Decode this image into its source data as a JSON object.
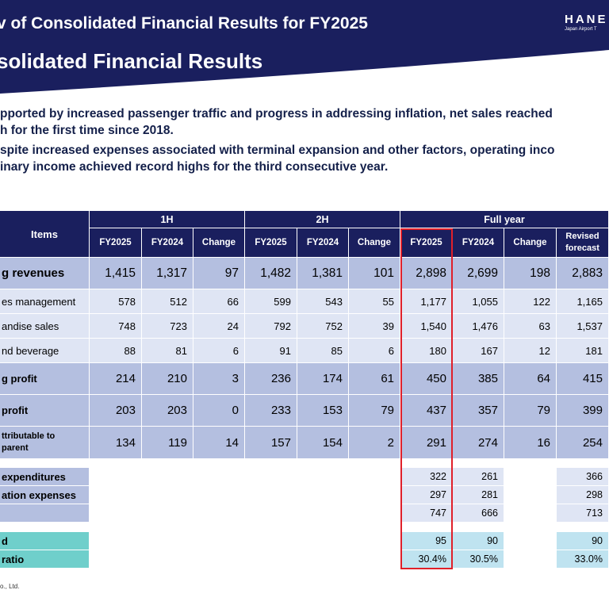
{
  "header": {
    "title_line1": "v of Consolidated Financial Results for FY2025",
    "title_line2": "solidated Financial Results",
    "logo_text": "HANE",
    "logo_sub": "Japan Airport T"
  },
  "bullets": [
    {
      "lines": [
        "pported by increased passenger traffic and progress in addressing inflation, net sales reached",
        "h for the first time since 2018."
      ]
    },
    {
      "lines": [
        "spite increased expenses associated with terminal expansion and other factors, operating inco",
        "inary income achieved record highs for the third consecutive year."
      ]
    }
  ],
  "table": {
    "items_header": "Items",
    "groups": [
      "1H",
      "2H",
      "Full year"
    ],
    "subheaders": [
      "FY2025",
      "FY2024",
      "Change",
      "FY2025",
      "FY2024",
      "Change",
      "FY2025",
      "FY2024",
      "Change",
      "Revised forecast"
    ],
    "rows": [
      {
        "label": "g revenues",
        "values": [
          "1,415",
          "1,317",
          "97",
          "1,482",
          "1,381",
          "101",
          "2,898",
          "2,699",
          "198",
          "2,883"
        ]
      },
      {
        "label": "es management",
        "values": [
          "578",
          "512",
          "66",
          "599",
          "543",
          "55",
          "1,177",
          "1,055",
          "122",
          "1,165"
        ]
      },
      {
        "label": "andise sales",
        "values": [
          "748",
          "723",
          "24",
          "792",
          "752",
          "39",
          "1,540",
          "1,476",
          "63",
          "1,537"
        ]
      },
      {
        "label": "nd beverage",
        "values": [
          "88",
          "81",
          "6",
          "91",
          "85",
          "6",
          "180",
          "167",
          "12",
          "181"
        ]
      },
      {
        "label": "g profit",
        "values": [
          "214",
          "210",
          "3",
          "236",
          "174",
          "61",
          "450",
          "385",
          "64",
          "415"
        ]
      },
      {
        "label": "profit",
        "values": [
          "203",
          "203",
          "0",
          "233",
          "153",
          "79",
          "437",
          "357",
          "79",
          "399"
        ]
      },
      {
        "label": "ttributable to parent",
        "label_lines": [
          "ttributable to",
          "parent"
        ],
        "values": [
          "134",
          "119",
          "14",
          "157",
          "154",
          "2",
          "291",
          "274",
          "16",
          "254"
        ]
      }
    ],
    "extra_rows": [
      {
        "label": "expenditures",
        "values": [
          "322",
          "261",
          "366"
        ]
      },
      {
        "label": "ation expenses",
        "values": [
          "297",
          "281",
          "298"
        ]
      },
      {
        "label": "",
        "values": [
          "747",
          "666",
          "713"
        ]
      }
    ],
    "teal_rows": [
      {
        "label": "d",
        "values": [
          "95",
          "90",
          "90"
        ]
      },
      {
        "label": "ratio",
        "values": [
          "30.4%",
          "30.5%",
          "33.0%"
        ]
      }
    ]
  },
  "footer": "o., Ltd.",
  "colors": {
    "navy": "#1a1f5e",
    "row_dark": "#b4bfe0",
    "row_light": "#dfe5f4",
    "teal": "#6fcfcb",
    "highlight": "#e0202a"
  }
}
